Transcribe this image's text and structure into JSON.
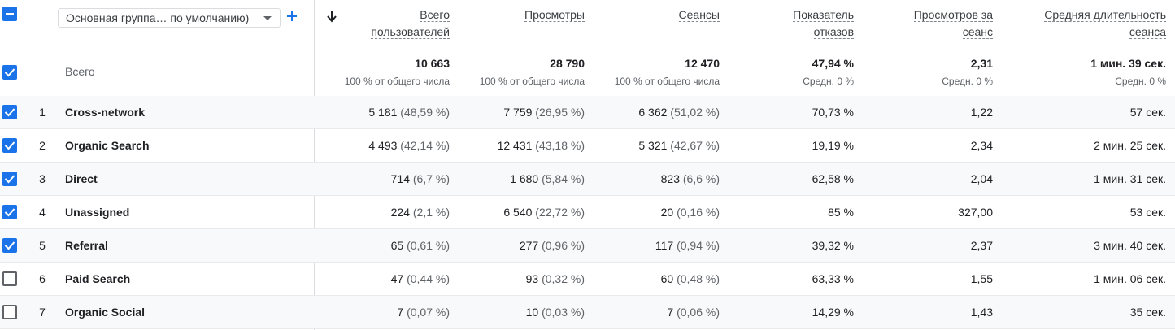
{
  "header": {
    "dimension_select": "Основная группа… по умолчанию)",
    "columns": [
      {
        "line1": "Всего",
        "line2": "пользователей"
      },
      {
        "line1": "Просмотры",
        "line2": ""
      },
      {
        "line1": "Сеансы",
        "line2": ""
      },
      {
        "line1": "Показатель",
        "line2": "отказов"
      },
      {
        "line1": "Просмотров за",
        "line2": "сеанс"
      },
      {
        "line1": "Средняя длительность",
        "line2": "сеанса"
      }
    ]
  },
  "totals": {
    "label": "Всего",
    "values": [
      "10 663",
      "28 790",
      "12 470",
      "47,94 %",
      "2,31",
      "1 мин. 39 сек."
    ],
    "subs": [
      "100 % от общего числа",
      "100 % от общего числа",
      "100 % от общего числа",
      "Средн. 0 %",
      "Средн. 0 %",
      "Средн. 0 %"
    ]
  },
  "rows": [
    {
      "num": "1",
      "name": "Cross-network",
      "checked": true,
      "users": "5 181",
      "users_pct": "(48,59 %)",
      "views": "7 759",
      "views_pct": "(26,95 %)",
      "sessions": "6 362",
      "sessions_pct": "(51,02 %)",
      "bounce": "70,73 %",
      "vps": "1,22",
      "duration": "57 сек."
    },
    {
      "num": "2",
      "name": "Organic Search",
      "checked": true,
      "users": "4 493",
      "users_pct": "(42,14 %)",
      "views": "12 431",
      "views_pct": "(43,18 %)",
      "sessions": "5 321",
      "sessions_pct": "(42,67 %)",
      "bounce": "19,19 %",
      "vps": "2,34",
      "duration": "2 мин. 25 сек."
    },
    {
      "num": "3",
      "name": "Direct",
      "checked": true,
      "users": "714",
      "users_pct": "(6,7 %)",
      "views": "1 680",
      "views_pct": "(5,84 %)",
      "sessions": "823",
      "sessions_pct": "(6,6 %)",
      "bounce": "62,58 %",
      "vps": "2,04",
      "duration": "1 мин. 31 сек."
    },
    {
      "num": "4",
      "name": "Unassigned",
      "checked": true,
      "users": "224",
      "users_pct": "(2,1 %)",
      "views": "6 540",
      "views_pct": "(22,72 %)",
      "sessions": "20",
      "sessions_pct": "(0,16 %)",
      "bounce": "85 %",
      "vps": "327,00",
      "duration": "53 сек."
    },
    {
      "num": "5",
      "name": "Referral",
      "checked": true,
      "users": "65",
      "users_pct": "(0,61 %)",
      "views": "277",
      "views_pct": "(0,96 %)",
      "sessions": "117",
      "sessions_pct": "(0,94 %)",
      "bounce": "39,32 %",
      "vps": "2,37",
      "duration": "3 мин. 40 сек."
    },
    {
      "num": "6",
      "name": "Paid Search",
      "checked": false,
      "users": "47",
      "users_pct": "(0,44 %)",
      "views": "93",
      "views_pct": "(0,32 %)",
      "sessions": "60",
      "sessions_pct": "(0,48 %)",
      "bounce": "63,33 %",
      "vps": "1,55",
      "duration": "1 мин. 06 сек."
    },
    {
      "num": "7",
      "name": "Organic Social",
      "checked": false,
      "users": "7",
      "users_pct": "(0,07 %)",
      "views": "10",
      "views_pct": "(0,03 %)",
      "sessions": "7",
      "sessions_pct": "(0,06 %)",
      "bounce": "14,29 %",
      "vps": "1,43",
      "duration": "35 сек."
    }
  ],
  "colors": {
    "accent": "#1a73e8",
    "border": "#e0e0e0",
    "muted": "#5f6368"
  },
  "icons": {
    "sort": "arrow-down-icon",
    "add": "plus-icon",
    "dropdown": "caret-down-icon",
    "check": "checkmark-icon",
    "indeterminate": "minus-icon"
  }
}
